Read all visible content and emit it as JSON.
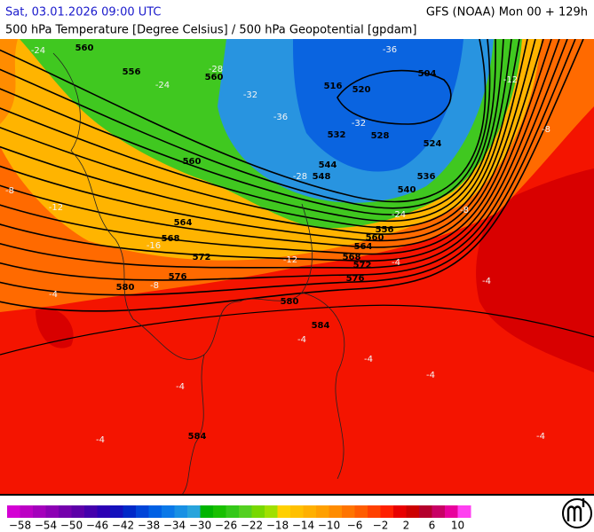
{
  "header": {
    "left_title": "Sat, 03.01.2026 09:00 UTC",
    "right_title": "GFS (NOAA) Mon 00 + 129h",
    "subtitle": "500 hPa Temperature [Degree Celsius] / 500 hPa Geopotential [gpdam]"
  },
  "colorbar": {
    "lim": [
      -60,
      12
    ],
    "colors": [
      "#d400d4",
      "#bc00c4",
      "#a400bc",
      "#8c00b4",
      "#7400ac",
      "#5c00a8",
      "#4400ac",
      "#2c00b4",
      "#1410bc",
      "#0028c8",
      "#0044d8",
      "#0060e4",
      "#0a78e8",
      "#1890e4",
      "#28a4dc",
      "#00b400",
      "#18c000",
      "#34c818",
      "#54d020",
      "#78d800",
      "#a0e000",
      "#ffd000",
      "#ffc000",
      "#ffb000",
      "#ffa000",
      "#ff8c00",
      "#ff7400",
      "#ff5c00",
      "#ff4000",
      "#ff2000",
      "#e80000",
      "#cc0000",
      "#b4002c",
      "#c80064",
      "#e8009c",
      "#ff40f0"
    ],
    "ticks": [
      {
        "value": -58,
        "label": "−58"
      },
      {
        "value": -54,
        "label": "−54"
      },
      {
        "value": -50,
        "label": "−50"
      },
      {
        "value": -46,
        "label": "−46"
      },
      {
        "value": -42,
        "label": "−42"
      },
      {
        "value": -38,
        "label": "−38"
      },
      {
        "value": -34,
        "label": "−34"
      },
      {
        "value": -30,
        "label": "−30"
      },
      {
        "value": -26,
        "label": "−26"
      },
      {
        "value": -22,
        "label": "−22"
      },
      {
        "value": -18,
        "label": "−18"
      },
      {
        "value": -14,
        "label": "−14"
      },
      {
        "value": -10,
        "label": "−10"
      },
      {
        "value": -6,
        "label": "−6"
      },
      {
        "value": -2,
        "label": "−2"
      },
      2,
      6,
      10
    ]
  },
  "contour_labels": {
    "geopotential": [
      "560",
      "556",
      "560",
      "516",
      "520",
      "504",
      "532",
      "528",
      "524",
      "544",
      "548",
      "540",
      "536",
      "560",
      "556",
      "560",
      "564",
      "568",
      "572",
      "576",
      "564",
      "568",
      "572",
      "576",
      "580",
      "580",
      "584",
      "584"
    ],
    "temperature": [
      "-24",
      "-28",
      "-32",
      "-36",
      "-36",
      "-32",
      "-28",
      "-24",
      "-24",
      "-12",
      "-8",
      "-8",
      "-12",
      "-8",
      "-16",
      "-12",
      "-8",
      "-4",
      "-4",
      "-4",
      "-4",
      "-4",
      "-4",
      "-4",
      "-4",
      "-4"
    ]
  }
}
